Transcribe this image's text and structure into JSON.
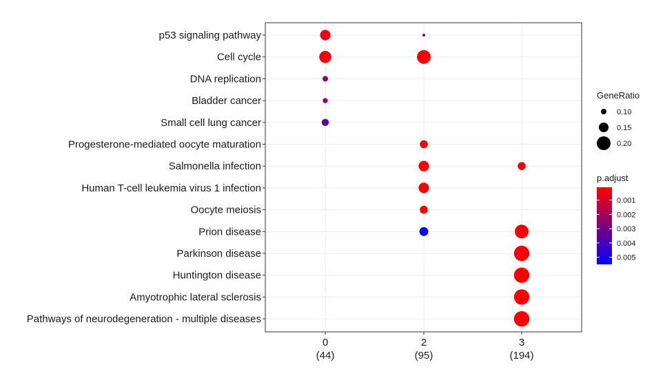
{
  "chart_data": {
    "type": "scatter",
    "title": "",
    "xlabel": "",
    "ylabel": "",
    "grid": true,
    "legend_position": "right",
    "x_categories": [
      {
        "label": "0",
        "count": "(44)"
      },
      {
        "label": "2",
        "count": "(95)"
      },
      {
        "label": "3",
        "count": "(194)"
      }
    ],
    "y_categories": [
      "p53 signaling pathway",
      "Cell cycle",
      "DNA replication",
      "Bladder cancer",
      "Small cell lung cancer",
      "Progesterone-mediated oocyte maturation",
      "Salmonella infection",
      "Human T-cell leukemia virus 1 infection",
      "Oocyte meiosis",
      "Prion disease",
      "Parkinson disease",
      "Huntington disease",
      "Amyotrophic lateral sclerosis",
      "Pathways of neurodegeneration - multiple diseases"
    ],
    "points": [
      {
        "x": "0",
        "y": "p53 signaling pathway",
        "gene_ratio": 0.16,
        "p_adjust": 0.0004
      },
      {
        "x": "0",
        "y": "Cell cycle",
        "gene_ratio": 0.18,
        "p_adjust": 0.0004
      },
      {
        "x": "0",
        "y": "DNA replication",
        "gene_ratio": 0.1,
        "p_adjust": 0.0024
      },
      {
        "x": "0",
        "y": "Bladder cancer",
        "gene_ratio": 0.095,
        "p_adjust": 0.0025
      },
      {
        "x": "0",
        "y": "Small cell lung cancer",
        "gene_ratio": 0.12,
        "p_adjust": 0.0035
      },
      {
        "x": "2",
        "y": "p53 signaling pathway",
        "gene_ratio": 0.05,
        "p_adjust": 0.003
      },
      {
        "x": "2",
        "y": "Cell cycle",
        "gene_ratio": 0.2,
        "p_adjust": 0.0002
      },
      {
        "x": "2",
        "y": "Progesterone-mediated oocyte maturation",
        "gene_ratio": 0.13,
        "p_adjust": 0.0003
      },
      {
        "x": "2",
        "y": "Salmonella infection",
        "gene_ratio": 0.16,
        "p_adjust": 0.0002
      },
      {
        "x": "2",
        "y": "Human T-cell leukemia virus 1 infection",
        "gene_ratio": 0.16,
        "p_adjust": 0.0002
      },
      {
        "x": "2",
        "y": "Oocyte meiosis",
        "gene_ratio": 0.13,
        "p_adjust": 0.0003
      },
      {
        "x": "2",
        "y": "Prion disease",
        "gene_ratio": 0.14,
        "p_adjust": 0.0055
      },
      {
        "x": "3",
        "y": "Salmonella infection",
        "gene_ratio": 0.13,
        "p_adjust": 0.0002
      },
      {
        "x": "3",
        "y": "Prion disease",
        "gene_ratio": 0.2,
        "p_adjust": 0.0002
      },
      {
        "x": "3",
        "y": "Parkinson disease",
        "gene_ratio": 0.22,
        "p_adjust": 0.0002
      },
      {
        "x": "3",
        "y": "Huntington disease",
        "gene_ratio": 0.22,
        "p_adjust": 0.0002
      },
      {
        "x": "3",
        "y": "Amyotrophic lateral sclerosis",
        "gene_ratio": 0.22,
        "p_adjust": 0.0002
      },
      {
        "x": "3",
        "y": "Pathways of neurodegeneration - multiple diseases",
        "gene_ratio": 0.22,
        "p_adjust": 0.0002
      }
    ],
    "legend_size": {
      "title": "GeneRatio",
      "values": [
        0.1,
        0.15,
        0.2
      ],
      "labels": [
        "0.10",
        "0.15",
        "0.20"
      ]
    },
    "legend_color": {
      "title": "p.adjust",
      "range": [
        0.0001,
        0.0055
      ],
      "ticks": [
        0.001,
        0.002,
        0.003,
        0.004,
        0.005
      ],
      "labels": [
        "0.001",
        "0.002",
        "0.003",
        "0.004",
        "0.005"
      ],
      "low_color": "#FF0000",
      "high_color": "#0000FF"
    }
  }
}
